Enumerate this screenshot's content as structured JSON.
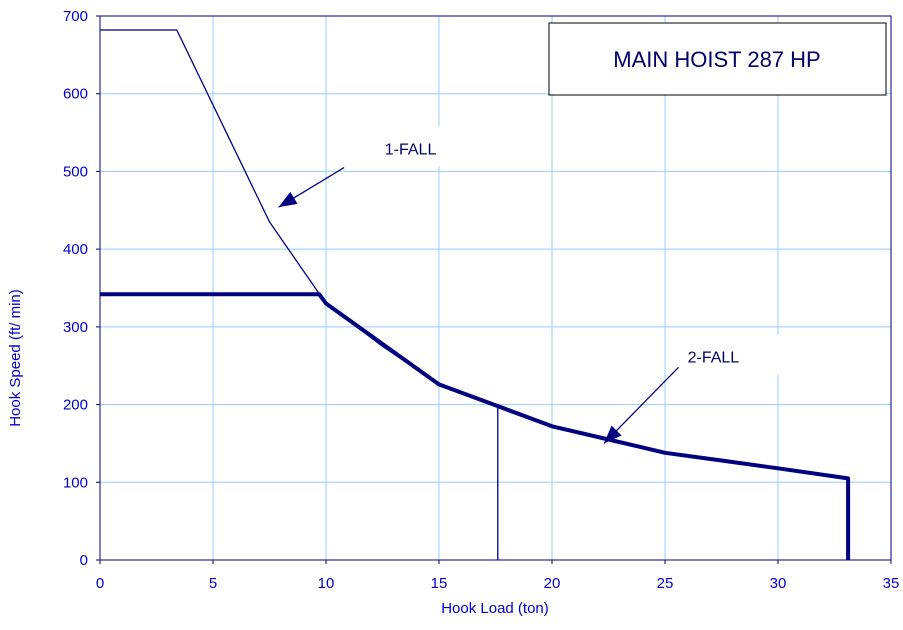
{
  "chart_data": {
    "type": "line",
    "title": "MAIN HOIST 287 HP",
    "xlabel": "Hook Load (ton)",
    "ylabel": "Hook Speed (ft/ min)",
    "xlim": [
      0,
      35
    ],
    "ylim": [
      0,
      700
    ],
    "xticks": [
      "0",
      "5",
      "10",
      "15",
      "20",
      "25",
      "30",
      "35"
    ],
    "yticks": [
      "0",
      "100",
      "200",
      "300",
      "400",
      "500",
      "600",
      "700"
    ],
    "grid": true,
    "series": [
      {
        "name": "1-FALL",
        "color": "#000080",
        "x": [
          0,
          3.4,
          7.5,
          10,
          12.5,
          15,
          17.6,
          17.6
        ],
        "y": [
          682,
          682,
          435,
          330,
          275,
          226,
          198,
          0
        ]
      },
      {
        "name": "2-FALL",
        "color": "#000080",
        "x": [
          0,
          9.7,
          10,
          12.5,
          15,
          17.5,
          20,
          22.5,
          25,
          27.5,
          30,
          33.1,
          33.1
        ],
        "y": [
          342,
          342,
          330,
          278,
          226,
          199,
          172,
          155,
          138,
          128,
          118,
          105,
          0
        ]
      }
    ],
    "annotations": [
      {
        "label": "1-FALL",
        "text_x": 12.6,
        "text_y": 522,
        "arrow_from": [
          10.8,
          505
        ],
        "arrow_to": [
          7.9,
          454
        ]
      },
      {
        "label": "2-FALL",
        "text_x": 26.0,
        "text_y": 254,
        "arrow_from": [
          25.6,
          248
        ],
        "arrow_to": [
          22.3,
          150
        ]
      }
    ]
  }
}
